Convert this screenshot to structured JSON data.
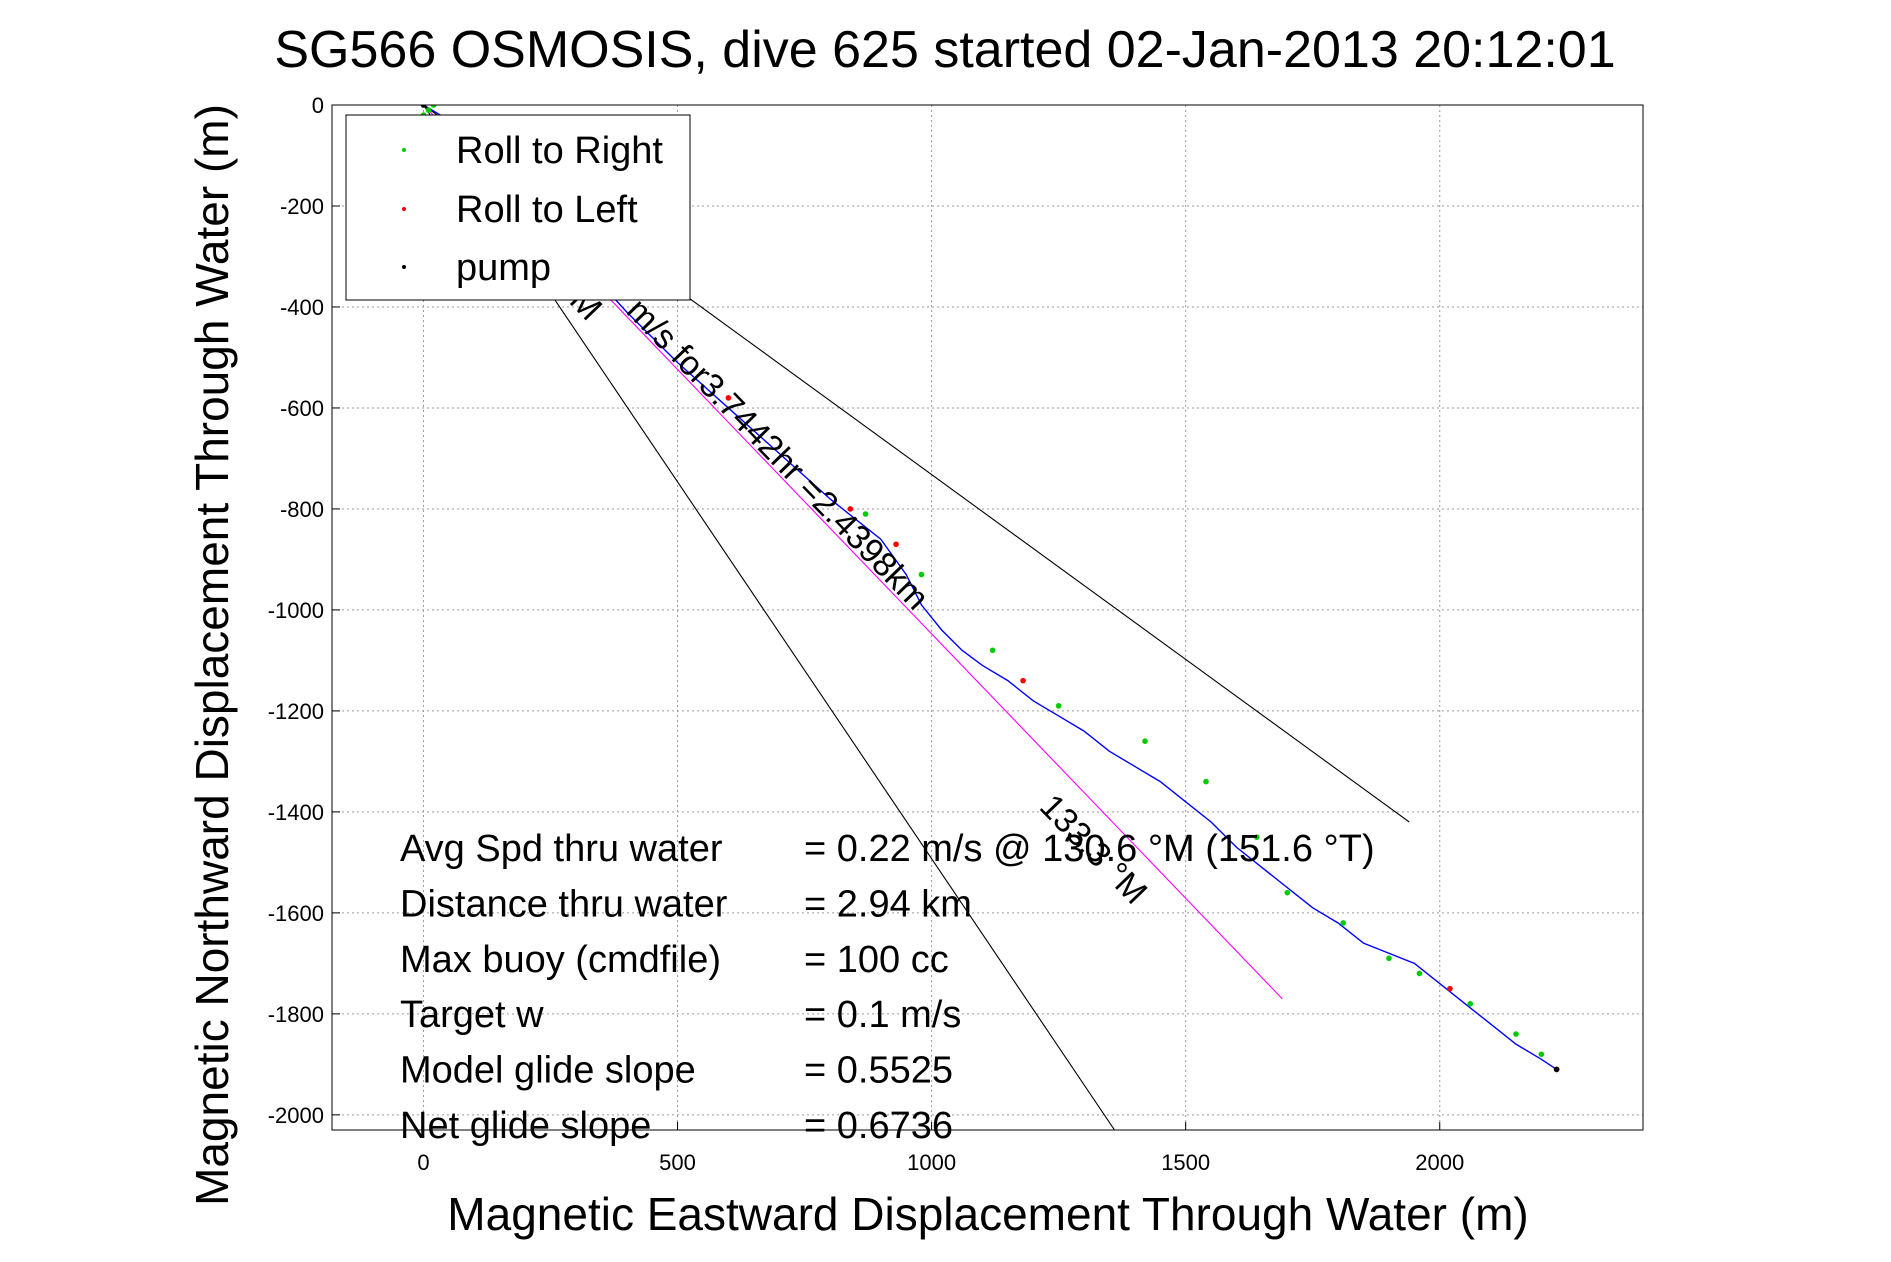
{
  "chart_data": {
    "type": "line",
    "title": "SG566 OSMOSIS, dive 625 started 02-Jan-2013 20:12:01",
    "xlabel": "Magnetic Eastward Displacement Through Water (m)",
    "ylabel": "Magnetic Northward Displacement Through Water (m)",
    "xlim": [
      -180,
      2400
    ],
    "ylim": [
      -2030,
      0
    ],
    "xticks": [
      0,
      500,
      1000,
      1500,
      2000
    ],
    "yticks": [
      0,
      -200,
      -400,
      -600,
      -800,
      -1000,
      -1200,
      -1400,
      -1600,
      -1800,
      -2000
    ],
    "grid": true,
    "legend": {
      "position": "top-left",
      "entries": [
        {
          "label": "Roll to Right",
          "color": "#00cc00"
        },
        {
          "label": "Roll to Left",
          "color": "#ff0000"
        },
        {
          "label": "pump",
          "color": "#000000"
        }
      ]
    },
    "series": [
      {
        "role": "track",
        "color": "#0000ff",
        "x": [
          0,
          100,
          200,
          300,
          400,
          500,
          600,
          700,
          800,
          900,
          950,
          980,
          1020,
          1060,
          1100,
          1150,
          1200,
          1250,
          1300,
          1350,
          1400,
          1450,
          1500,
          1550,
          1600,
          1650,
          1700,
          1750,
          1800,
          1850,
          1900,
          1950,
          2000,
          2050,
          2100,
          2150,
          2200,
          2230
        ],
        "y": [
          0,
          -60,
          -180,
          -300,
          -410,
          -510,
          -600,
          -690,
          -780,
          -860,
          -930,
          -990,
          -1040,
          -1080,
          -1110,
          -1140,
          -1180,
          -1210,
          -1240,
          -1280,
          -1310,
          -1340,
          -1380,
          -1420,
          -1470,
          -1510,
          -1550,
          -1590,
          -1620,
          -1660,
          -1680,
          -1700,
          -1740,
          -1780,
          -1820,
          -1860,
          -1890,
          -1910
        ]
      },
      {
        "role": "heading-line",
        "color": "#ff00ff",
        "x": [
          0,
          1690
        ],
        "y": [
          0,
          -1770
        ]
      },
      {
        "role": "envelope",
        "color": "#000000",
        "x": [
          0,
          1360
        ],
        "y": [
          0,
          -2030
        ]
      },
      {
        "role": "envelope",
        "color": "#000000",
        "x": [
          0,
          1940
        ],
        "y": [
          0,
          -1420
        ]
      }
    ],
    "markers": {
      "roll_right": {
        "color": "#00cc00",
        "x": [
          0,
          10,
          20,
          870,
          980,
          1120,
          1250,
          1420,
          1540,
          1640,
          1700,
          1810,
          1900,
          1960,
          2060,
          2150,
          2200
        ],
        "y": [
          -20,
          -10,
          0,
          -810,
          -930,
          -1080,
          -1190,
          -1260,
          -1340,
          -1450,
          -1560,
          -1620,
          -1690,
          -1720,
          -1780,
          -1840,
          -1880
        ]
      },
      "roll_left": {
        "color": "#ff0000",
        "x": [
          600,
          840,
          930,
          1180,
          2020,
          2230
        ],
        "y": [
          -580,
          -800,
          -870,
          -1140,
          -1750,
          -1910
        ]
      },
      "pump": {
        "color": "#000000",
        "x": [
          0,
          2230
        ],
        "y": [
          0,
          -1910
        ]
      }
    },
    "annotations": {
      "speed_line_label": "m/s for3.7442hr =2.4398km",
      "heading_label": "133.3 °M",
      "partial_m_label": "M",
      "stats": [
        {
          "label": "Avg Spd thru water",
          "value": "=  0.22 m/s @ 130.6 °M (151.6 °T)"
        },
        {
          "label": "Distance thru water",
          "value": "=  2.94 km"
        },
        {
          "label": "Max buoy (cmdfile)",
          "value": "= 100 cc"
        },
        {
          "label": "Target w",
          "value": "= 0.1 m/s"
        },
        {
          "label": "Model glide slope",
          "value": "= 0.5525"
        },
        {
          "label": "Net glide slope",
          "value": "= 0.6736"
        }
      ]
    }
  }
}
